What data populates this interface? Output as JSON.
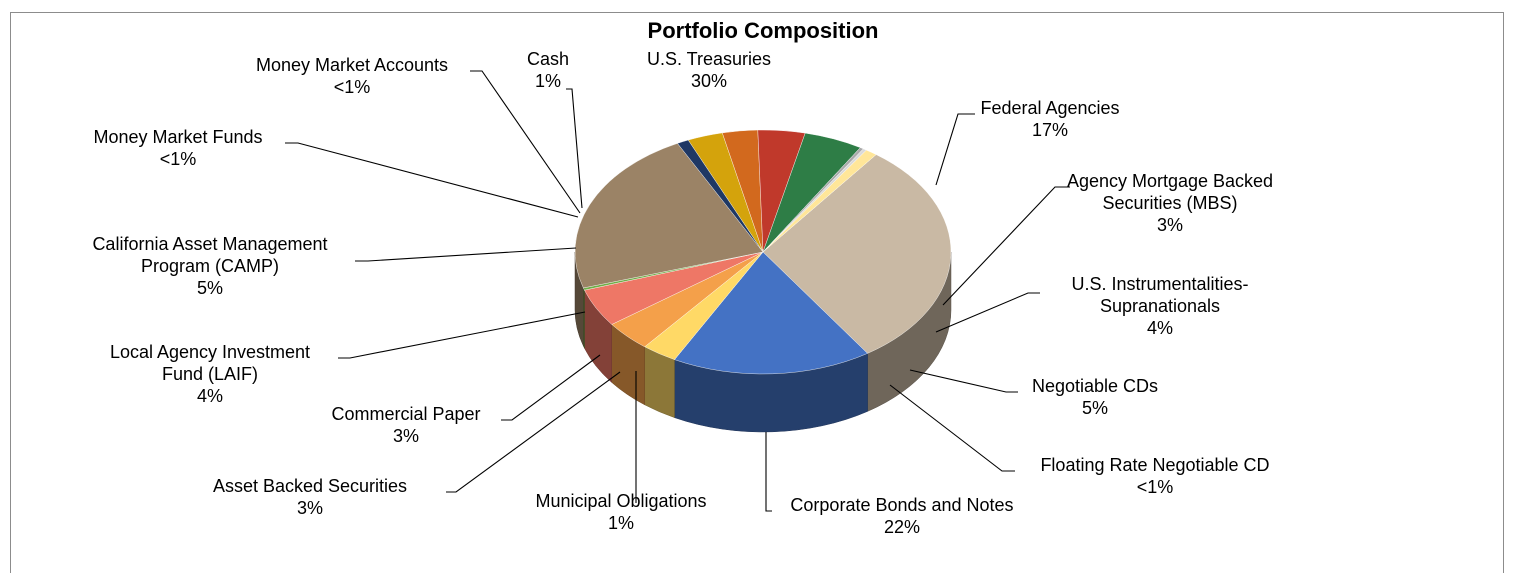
{
  "chart_data": {
    "type": "pie",
    "title": "Portfolio Composition",
    "slices": [
      {
        "label": "U.S. Treasuries",
        "value": 30,
        "display": "30%",
        "color": "#c9b9a4"
      },
      {
        "label": "Federal Agencies",
        "value": 17,
        "display": "17%",
        "color": "#4472c4"
      },
      {
        "label": "Agency Mortgage Backed Securities (MBS)",
        "value": 3,
        "display": "3%",
        "color": "#ffd966"
      },
      {
        "label": "U.S. Instrumentalities-Supranationals",
        "value": 4,
        "display": "4%",
        "color": "#f4a04a"
      },
      {
        "label": "Negotiable CDs",
        "value": 5,
        "display": "5%",
        "color": "#ee7766"
      },
      {
        "label": "Floating Rate Negotiable CD",
        "value": 0.3,
        "display": "<1%",
        "color": "#70ad47"
      },
      {
        "label": "Corporate Bonds and Notes",
        "value": 22,
        "display": "22%",
        "color": "#9b8366"
      },
      {
        "label": "Municipal Obligations",
        "value": 1,
        "display": "1%",
        "color": "#1f3864"
      },
      {
        "label": "Asset Backed Securities",
        "value": 3,
        "display": "3%",
        "color": "#d4a30c"
      },
      {
        "label": "Commercial Paper",
        "value": 3,
        "display": "3%",
        "color": "#d2691e"
      },
      {
        "label": "Local Agency Investment Fund (LAIF)",
        "value": 4,
        "display": "4%",
        "color": "#c0392b"
      },
      {
        "label": "California Asset Management Program (CAMP)",
        "value": 5,
        "display": "5%",
        "color": "#2e7d46"
      },
      {
        "label": "Money Market Funds",
        "value": 0.3,
        "display": "<1%",
        "color": "#a9a9a9"
      },
      {
        "label": "Money Market Accounts",
        "value": 0.3,
        "display": "<1%",
        "color": "#d9d9d9"
      },
      {
        "label": "Cash",
        "value": 1,
        "display": "1%",
        "color": "#ffe699"
      }
    ],
    "legend": "none"
  }
}
